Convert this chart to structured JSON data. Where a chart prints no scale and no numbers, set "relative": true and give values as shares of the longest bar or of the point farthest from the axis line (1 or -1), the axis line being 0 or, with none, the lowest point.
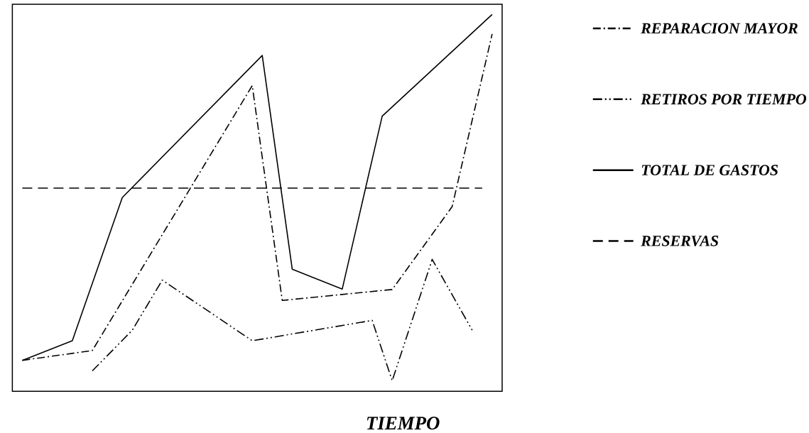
{
  "chart_data": {
    "type": "line",
    "xlabel": "TIEMPO",
    "relative": true,
    "legend": "right",
    "categories": [
      null,
      null,
      null,
      null,
      null,
      null,
      null,
      null,
      null,
      null,
      null,
      null,
      null,
      null,
      null,
      null,
      null,
      null,
      null,
      null,
      null,
      null,
      null,
      null,
      null,
      null,
      null,
      null,
      null,
      null,
      null,
      null,
      null,
      null,
      null,
      null,
      null,
      null,
      null,
      null,
      null,
      null,
      null,
      null,
      null,
      null,
      null,
      null
    ],
    "series": [
      {
        "name": "REPARACION MAYOR",
        "color": "#000000",
        "line_style": "dashdot",
        "values": [
          0.082,
          null,
          null,
          null,
          null,
          null,
          null,
          0.108,
          null,
          null,
          null,
          null,
          null,
          null,
          null,
          null,
          null,
          null,
          null,
          null,
          null,
          null,
          null,
          0.811,
          null,
          null,
          0.241,
          null,
          null,
          null,
          null,
          null,
          null,
          null,
          null,
          null,
          null,
          0.27,
          null,
          null,
          null,
          null,
          null,
          0.49,
          null,
          null,
          null,
          0.948
        ]
      },
      {
        "name": "RETIROS POR TIEMPO",
        "color": "#000000",
        "line_style": "dashdotdot",
        "values": [
          null,
          null,
          null,
          null,
          null,
          null,
          null,
          0.054,
          null,
          null,
          null,
          0.162,
          null,
          null,
          0.295,
          null,
          null,
          null,
          null,
          null,
          null,
          null,
          null,
          0.134,
          null,
          null,
          null,
          null,
          null,
          null,
          null,
          null,
          null,
          null,
          null,
          0.188,
          null,
          0.028,
          null,
          null,
          null,
          0.35,
          null,
          null,
          null,
          0.162,
          null,
          null
        ]
      },
      {
        "name": "TOTAL DE GASTOS",
        "color": "#000000",
        "line_style": "solid",
        "values": [
          0.082,
          null,
          null,
          null,
          null,
          0.134,
          null,
          null,
          null,
          null,
          0.514,
          null,
          null,
          null,
          null,
          null,
          null,
          null,
          null,
          null,
          null,
          null,
          null,
          null,
          0.891,
          null,
          null,
          0.324,
          null,
          null,
          null,
          null,
          0.271,
          null,
          null,
          null,
          0.73,
          null,
          null,
          null,
          null,
          null,
          null,
          null,
          null,
          null,
          null,
          1.0
        ]
      },
      {
        "name": "RESERVAS",
        "color": "#000000",
        "line_style": "dashed",
        "values": [
          0.539,
          null,
          null,
          null,
          null,
          null,
          null,
          null,
          null,
          null,
          null,
          null,
          null,
          null,
          null,
          null,
          null,
          null,
          null,
          null,
          null,
          null,
          null,
          null,
          null,
          null,
          null,
          null,
          null,
          null,
          null,
          null,
          null,
          null,
          null,
          null,
          null,
          null,
          null,
          null,
          null,
          null,
          null,
          null,
          null,
          null,
          0.539,
          null
        ]
      }
    ]
  }
}
